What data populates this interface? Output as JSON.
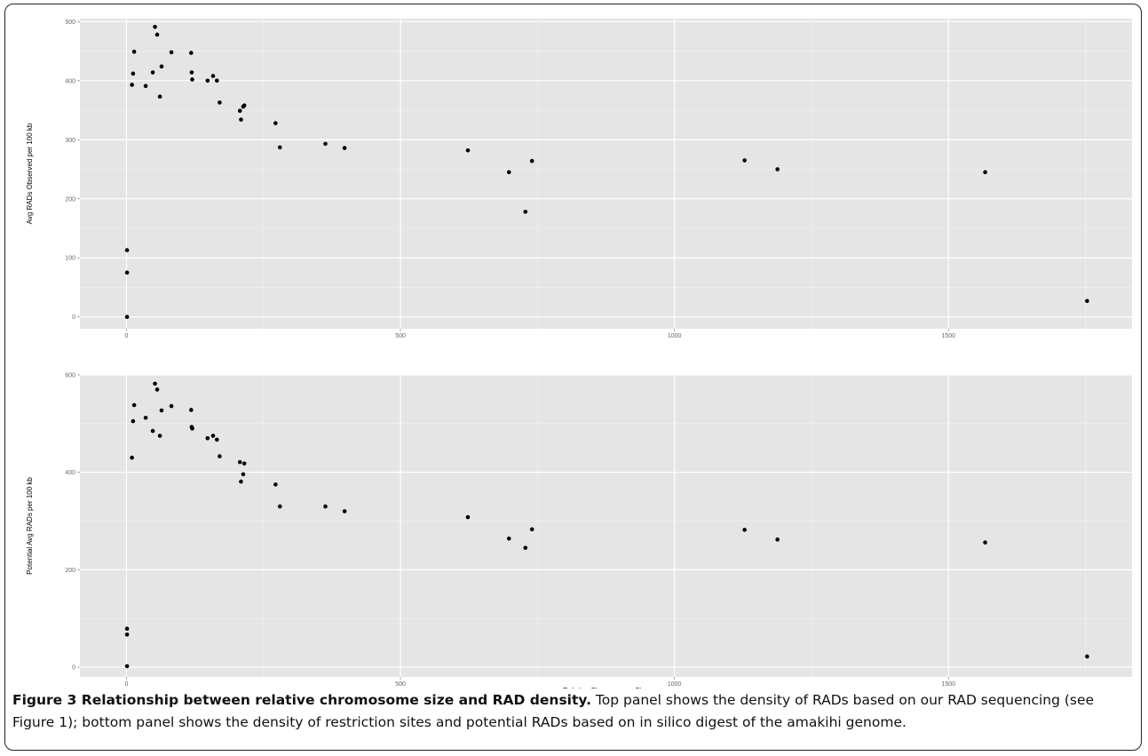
{
  "caption": {
    "label": "Figure 3 Relationship between relative chromosome size and RAD density.",
    "text": " Top panel shows the density of RADs based on our RAD sequencing (see Figure 1); bottom panel shows the density of restriction sites and potential RADs based on in silico digest of the amakihi genome."
  },
  "chart_data": [
    {
      "type": "scatter",
      "panel": "top",
      "xlabel": "",
      "ylabel": "Avg RADs Observed per 100 kb",
      "xlim": [
        -85,
        1835
      ],
      "ylim": [
        -20,
        505
      ],
      "xticks": [
        "0",
        "500",
        "1000",
        "1500"
      ],
      "yticks": [
        "0",
        "100",
        "200",
        "300",
        "400",
        "500"
      ],
      "grid": true,
      "points": [
        {
          "x": 1,
          "y": 0
        },
        {
          "x": 1,
          "y": 75
        },
        {
          "x": 1,
          "y": 113
        },
        {
          "x": 10,
          "y": 393
        },
        {
          "x": 12,
          "y": 412
        },
        {
          "x": 14,
          "y": 449
        },
        {
          "x": 35,
          "y": 391
        },
        {
          "x": 48,
          "y": 414
        },
        {
          "x": 52,
          "y": 491
        },
        {
          "x": 56,
          "y": 478
        },
        {
          "x": 61,
          "y": 373
        },
        {
          "x": 64,
          "y": 424
        },
        {
          "x": 82,
          "y": 448
        },
        {
          "x": 118,
          "y": 447
        },
        {
          "x": 119,
          "y": 414
        },
        {
          "x": 120,
          "y": 402
        },
        {
          "x": 148,
          "y": 400
        },
        {
          "x": 158,
          "y": 408
        },
        {
          "x": 165,
          "y": 400
        },
        {
          "x": 170,
          "y": 363
        },
        {
          "x": 207,
          "y": 349
        },
        {
          "x": 209,
          "y": 334
        },
        {
          "x": 213,
          "y": 356
        },
        {
          "x": 215,
          "y": 358
        },
        {
          "x": 272,
          "y": 328
        },
        {
          "x": 280,
          "y": 287
        },
        {
          "x": 363,
          "y": 293
        },
        {
          "x": 398,
          "y": 286
        },
        {
          "x": 623,
          "y": 282
        },
        {
          "x": 698,
          "y": 245
        },
        {
          "x": 728,
          "y": 178
        },
        {
          "x": 740,
          "y": 264
        },
        {
          "x": 1128,
          "y": 265
        },
        {
          "x": 1188,
          "y": 250
        },
        {
          "x": 1567,
          "y": 245
        },
        {
          "x": 1753,
          "y": 27
        }
      ]
    },
    {
      "type": "scatter",
      "panel": "bottom",
      "xlabel": "Relative Chromosome Size",
      "ylabel": "Potential Avg RADs per 100 kb",
      "xlim": [
        -85,
        1835
      ],
      "ylim": [
        -20,
        600
      ],
      "xticks": [
        "0",
        "500",
        "1000",
        "1500"
      ],
      "yticks": [
        "0",
        "200",
        "400",
        "600"
      ],
      "grid": true,
      "points": [
        {
          "x": 1,
          "y": 2
        },
        {
          "x": 1,
          "y": 67
        },
        {
          "x": 1,
          "y": 79
        },
        {
          "x": 10,
          "y": 430
        },
        {
          "x": 12,
          "y": 505
        },
        {
          "x": 14,
          "y": 538
        },
        {
          "x": 35,
          "y": 512
        },
        {
          "x": 48,
          "y": 485
        },
        {
          "x": 52,
          "y": 582
        },
        {
          "x": 56,
          "y": 570
        },
        {
          "x": 61,
          "y": 475
        },
        {
          "x": 64,
          "y": 527
        },
        {
          "x": 82,
          "y": 536
        },
        {
          "x": 118,
          "y": 528
        },
        {
          "x": 119,
          "y": 493
        },
        {
          "x": 120,
          "y": 490
        },
        {
          "x": 148,
          "y": 470
        },
        {
          "x": 158,
          "y": 475
        },
        {
          "x": 165,
          "y": 467
        },
        {
          "x": 170,
          "y": 433
        },
        {
          "x": 207,
          "y": 421
        },
        {
          "x": 209,
          "y": 381
        },
        {
          "x": 213,
          "y": 396
        },
        {
          "x": 215,
          "y": 418
        },
        {
          "x": 272,
          "y": 375
        },
        {
          "x": 280,
          "y": 330
        },
        {
          "x": 363,
          "y": 330
        },
        {
          "x": 398,
          "y": 320
        },
        {
          "x": 623,
          "y": 308
        },
        {
          "x": 698,
          "y": 264
        },
        {
          "x": 728,
          "y": 245
        },
        {
          "x": 740,
          "y": 283
        },
        {
          "x": 1128,
          "y": 282
        },
        {
          "x": 1188,
          "y": 262
        },
        {
          "x": 1567,
          "y": 256
        },
        {
          "x": 1753,
          "y": 22
        }
      ]
    }
  ]
}
